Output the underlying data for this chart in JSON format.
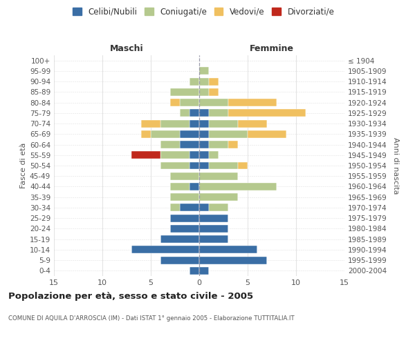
{
  "age_groups": [
    "100+",
    "95-99",
    "90-94",
    "85-89",
    "80-84",
    "75-79",
    "70-74",
    "65-69",
    "60-64",
    "55-59",
    "50-54",
    "45-49",
    "40-44",
    "35-39",
    "30-34",
    "25-29",
    "20-24",
    "15-19",
    "10-14",
    "5-9",
    "0-4"
  ],
  "birth_years": [
    "≤ 1904",
    "1905-1909",
    "1910-1914",
    "1915-1919",
    "1920-1924",
    "1925-1929",
    "1930-1934",
    "1935-1939",
    "1940-1944",
    "1945-1949",
    "1950-1954",
    "1955-1959",
    "1960-1964",
    "1965-1969",
    "1970-1974",
    "1975-1979",
    "1980-1984",
    "1985-1989",
    "1990-1994",
    "1995-1999",
    "2000-2004"
  ],
  "maschi": {
    "celibi": [
      0,
      0,
      0,
      0,
      0,
      1,
      1,
      2,
      2,
      1,
      1,
      0,
      1,
      0,
      2,
      3,
      3,
      4,
      7,
      4,
      1
    ],
    "coniugati": [
      0,
      0,
      1,
      3,
      2,
      1,
      3,
      3,
      2,
      3,
      3,
      3,
      2,
      3,
      1,
      0,
      0,
      0,
      0,
      0,
      0
    ],
    "vedovi": [
      0,
      0,
      0,
      0,
      1,
      0,
      2,
      1,
      0,
      0,
      0,
      0,
      0,
      0,
      0,
      0,
      0,
      0,
      0,
      0,
      0
    ],
    "divorziati": [
      0,
      0,
      0,
      0,
      0,
      0,
      0,
      0,
      0,
      3,
      0,
      0,
      0,
      0,
      0,
      0,
      0,
      0,
      0,
      0,
      0
    ]
  },
  "femmine": {
    "nubili": [
      0,
      0,
      0,
      0,
      0,
      1,
      1,
      1,
      1,
      1,
      1,
      0,
      0,
      0,
      1,
      3,
      3,
      3,
      6,
      7,
      1
    ],
    "coniugate": [
      0,
      1,
      1,
      1,
      3,
      2,
      3,
      4,
      2,
      1,
      3,
      4,
      8,
      4,
      2,
      0,
      0,
      0,
      0,
      0,
      0
    ],
    "vedove": [
      0,
      0,
      1,
      1,
      5,
      8,
      3,
      4,
      1,
      0,
      1,
      0,
      0,
      0,
      0,
      0,
      0,
      0,
      0,
      0,
      0
    ],
    "divorziate": [
      0,
      0,
      0,
      0,
      0,
      0,
      0,
      0,
      0,
      0,
      0,
      0,
      0,
      0,
      0,
      0,
      0,
      0,
      0,
      0,
      0
    ]
  },
  "colors": {
    "celibi_nubili": "#3a6ea5",
    "coniugati": "#b5c98e",
    "vedovi": "#f0c060",
    "divorziati": "#c0281c"
  },
  "xlim": 15,
  "title": "Popolazione per età, sesso e stato civile - 2005",
  "subtitle": "COMUNE DI AQUILA D'ARROSCIA (IM) - Dati ISTAT 1° gennaio 2005 - Elaborazione TUTTITALIA.IT",
  "xlabel_left": "Maschi",
  "xlabel_right": "Femmine",
  "ylabel_left": "Fasce di età",
  "ylabel_right": "Anni di nascita",
  "background_color": "#ffffff",
  "grid_color": "#cccccc"
}
